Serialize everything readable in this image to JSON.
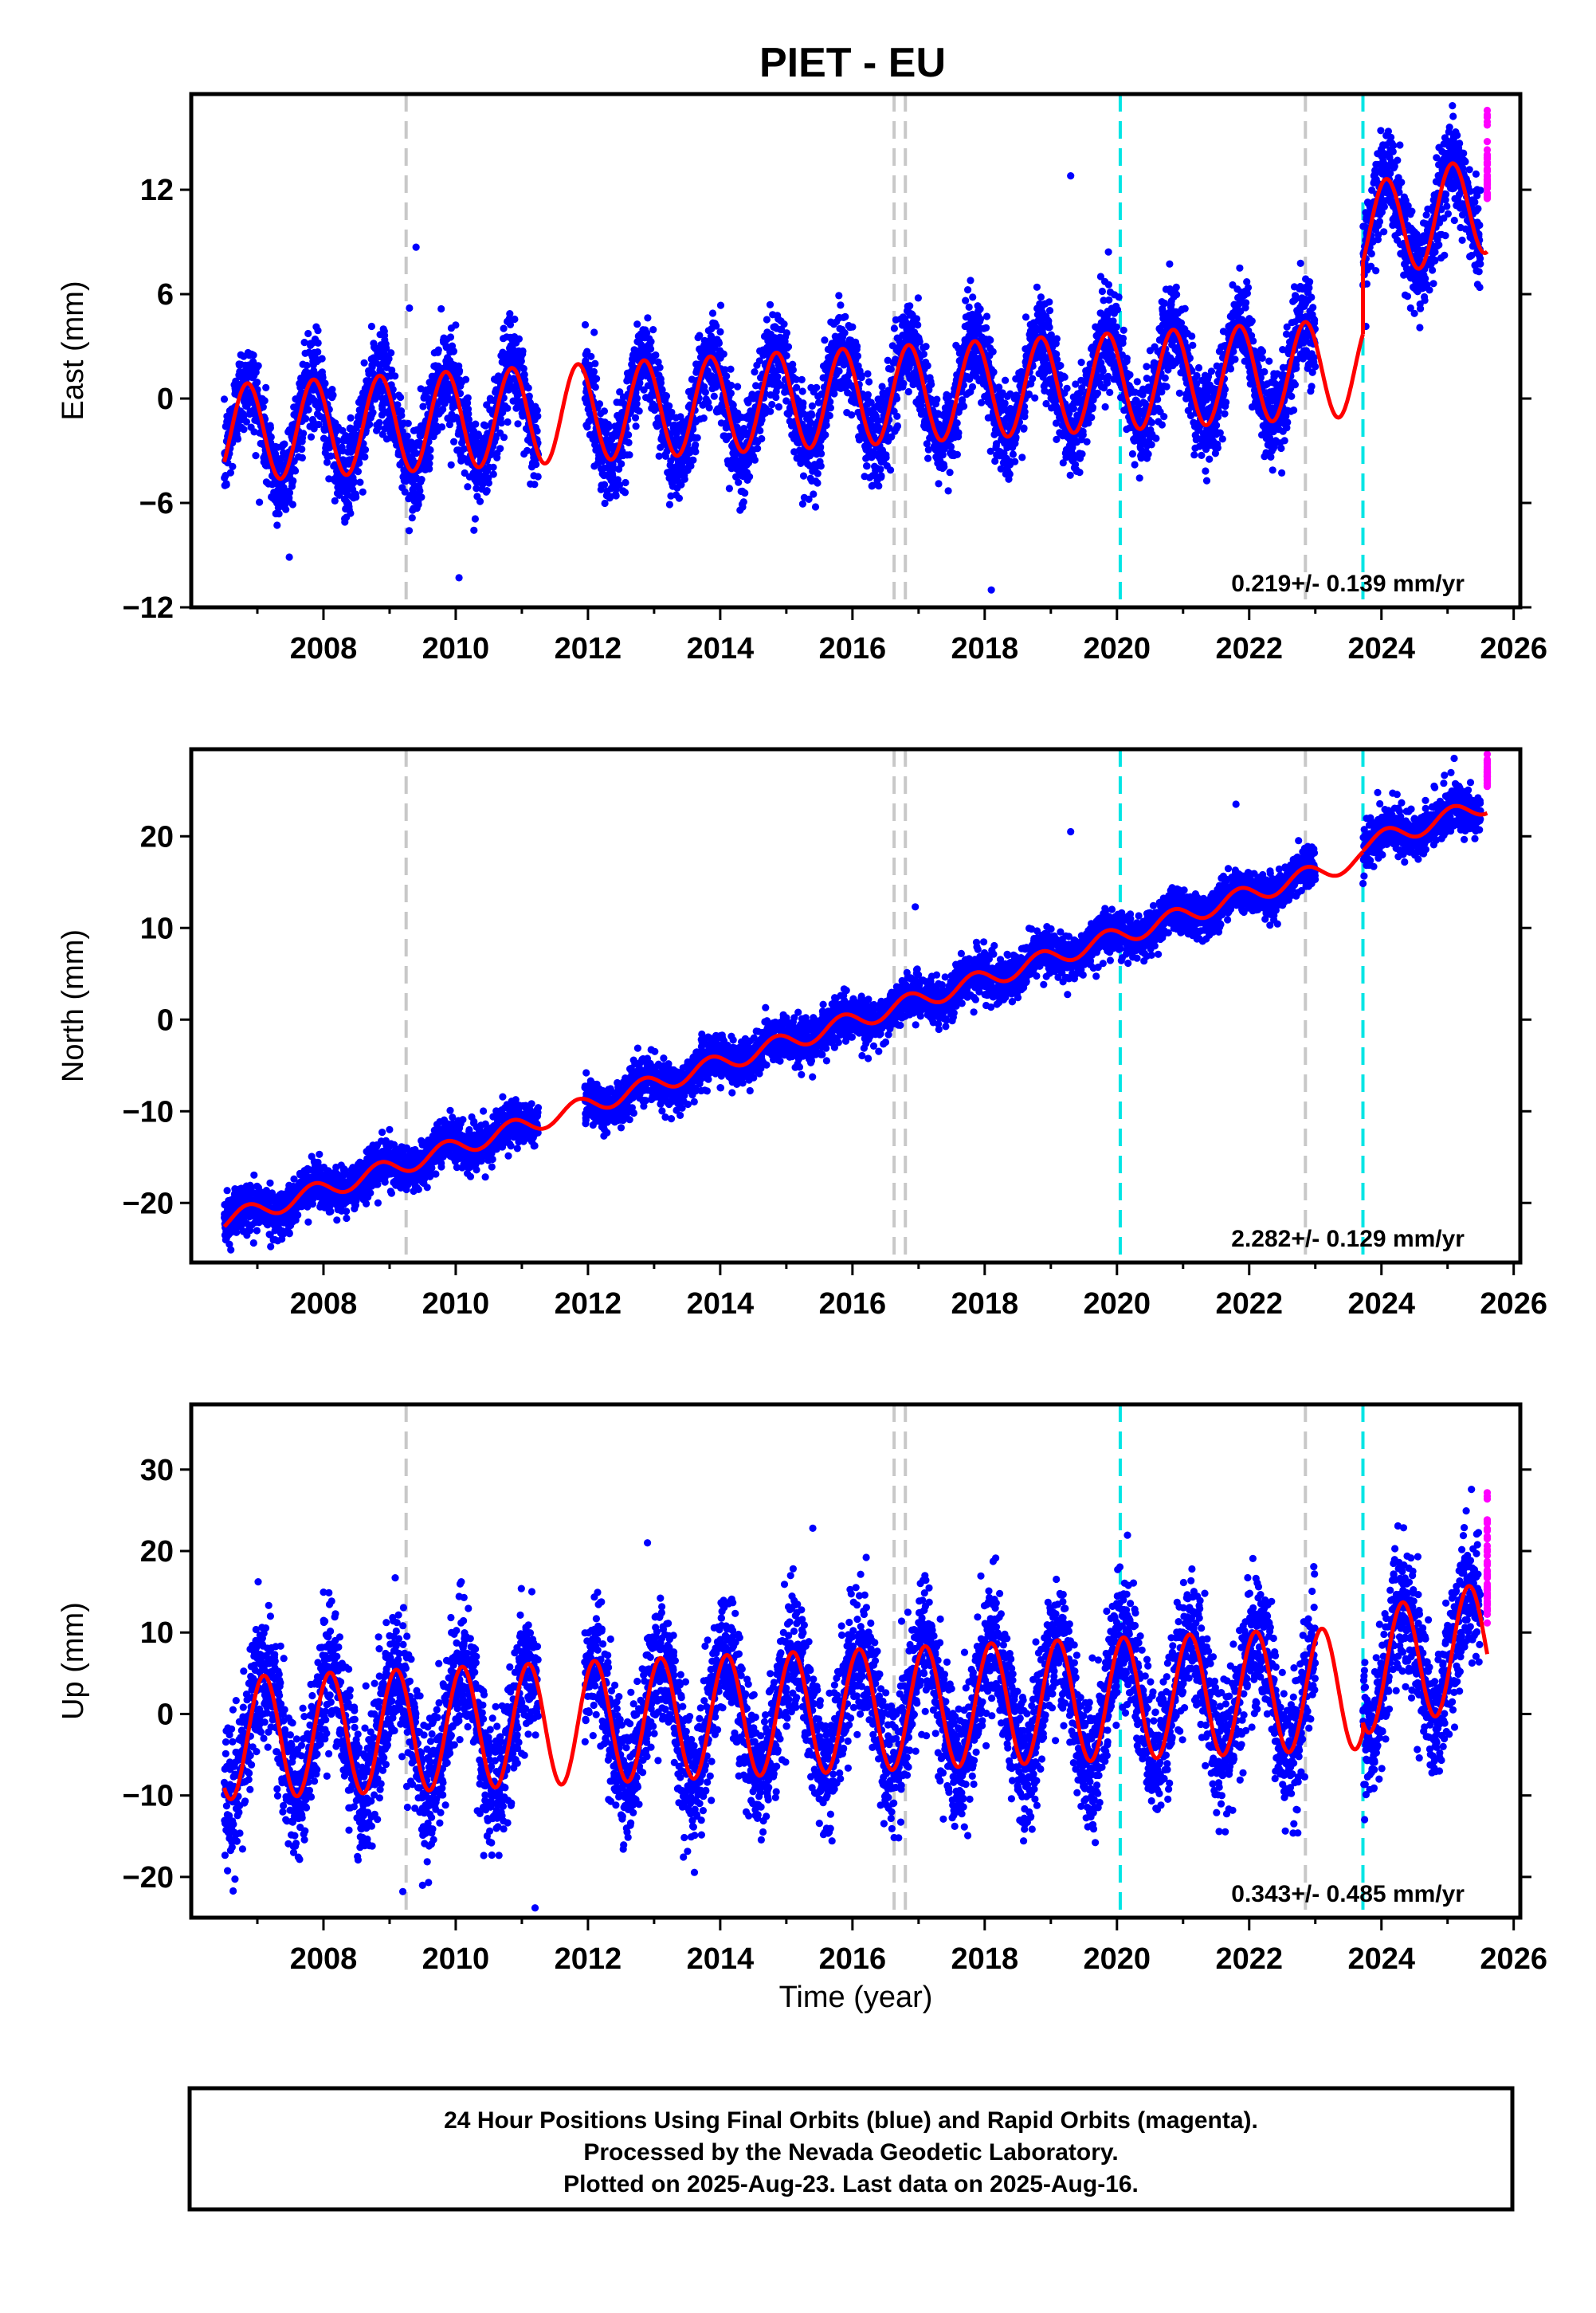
{
  "chart_data": {
    "type": "scatter",
    "title": "PIET - EU",
    "xlabel": "Time (year)",
    "x_ticks": [
      "2008",
      "2010",
      "2012",
      "2014",
      "2016",
      "2018",
      "2020",
      "2022",
      "2024",
      "2026"
    ],
    "xlim": [
      2006.0,
      2026.1
    ],
    "colors": {
      "final_orbits": "#0000ff",
      "rapid_orbits": "#ff00ff",
      "model_fit": "#ff0000",
      "equipment_change": "#c8c8c8",
      "earthquake": "#00e5e5"
    },
    "vertical_lines": {
      "gray_dashed": [
        2009.25,
        2016.63,
        2016.8,
        2022.85
      ],
      "cyan_dashed": [
        2020.05,
        2023.72
      ]
    },
    "panels": [
      {
        "name": "east",
        "ylabel": "East (mm)",
        "ylim": [
          -12,
          17.5
        ],
        "y_ticks": [
          "-12",
          "-6",
          "0",
          "6",
          "12"
        ],
        "rate_text": "0.219+/- 0.139 mm/yr",
        "model": {
          "segments": [
            {
              "start": 2006.5,
              "end": 2023.72,
              "base": -2.0,
              "slope": 0.22,
              "amp": 2.8,
              "phase": 0.1
            },
            {
              "start": 2023.72,
              "end": 2025.6,
              "base": 9.5,
              "slope": 0.9,
              "amp": 2.8,
              "phase": 0.1
            }
          ]
        },
        "outliers": [
          [
            2009.4,
            8.7
          ],
          [
            2009.3,
            5.2
          ],
          [
            2010.05,
            -10.3
          ],
          [
            2019.3,
            12.8
          ],
          [
            2018.1,
            -11.0
          ]
        ]
      },
      {
        "name": "north",
        "ylabel": "North (mm)",
        "ylim": [
          -26.5,
          29.5
        ],
        "y_ticks": [
          "-20",
          "-10",
          "0",
          "10",
          "20"
        ],
        "rate_text": "2.282+/- 0.129 mm/yr",
        "model": {
          "segments": [
            {
              "start": 2006.5,
              "end": 2023.72,
              "base": -22.0,
              "slope": 2.3,
              "amp": 1.0,
              "phase": 0.1
            },
            {
              "start": 2023.72,
              "end": 2025.6,
              "base": 19.0,
              "slope": 2.4,
              "amp": 1.0,
              "phase": 0.1
            }
          ]
        },
        "outliers": [
          [
            2016.95,
            12.3
          ],
          [
            2019.3,
            20.5
          ],
          [
            2021.8,
            23.5
          ],
          [
            2025.1,
            28.5
          ]
        ]
      },
      {
        "name": "up",
        "ylabel": "Up (mm)",
        "ylim": [
          -25,
          38
        ],
        "y_ticks": [
          "-20",
          "-10",
          "0",
          "10",
          "20",
          "30"
        ],
        "rate_text": "0.343+/- 0.485 mm/yr",
        "model": {
          "segments": [
            {
              "start": 2006.5,
              "end": 2023.72,
              "base": -3.0,
              "slope": 0.36,
              "amp": 7.5,
              "phase": 0.35
            },
            {
              "start": 2023.72,
              "end": 2025.6,
              "base": 5.0,
              "slope": 2.0,
              "amp": 7.5,
              "phase": 0.35
            }
          ]
        },
        "outliers": [
          [
            2011.2,
            -23.8
          ],
          [
            2012.9,
            21.0
          ],
          [
            2015.4,
            22.8
          ],
          [
            2009.2,
            -21.8
          ]
        ]
      }
    ],
    "data_gaps": [
      [
        2011.25,
        2011.95
      ],
      [
        2023.0,
        2023.72
      ]
    ],
    "final_orbit_range": [
      2006.5,
      2025.5
    ],
    "rapid_orbit_range": [
      2025.5,
      2025.62
    ],
    "noise_sd": {
      "east": 1.3,
      "north": 1.2,
      "up": 4.0
    }
  },
  "footer": {
    "line1": "24 Hour Positions Using Final Orbits (blue) and Rapid Orbits (magenta).",
    "line2": "Processed by the Nevada Geodetic Laboratory.",
    "line3": "Plotted on 2025-Aug-23. Last data on 2025-Aug-16."
  }
}
